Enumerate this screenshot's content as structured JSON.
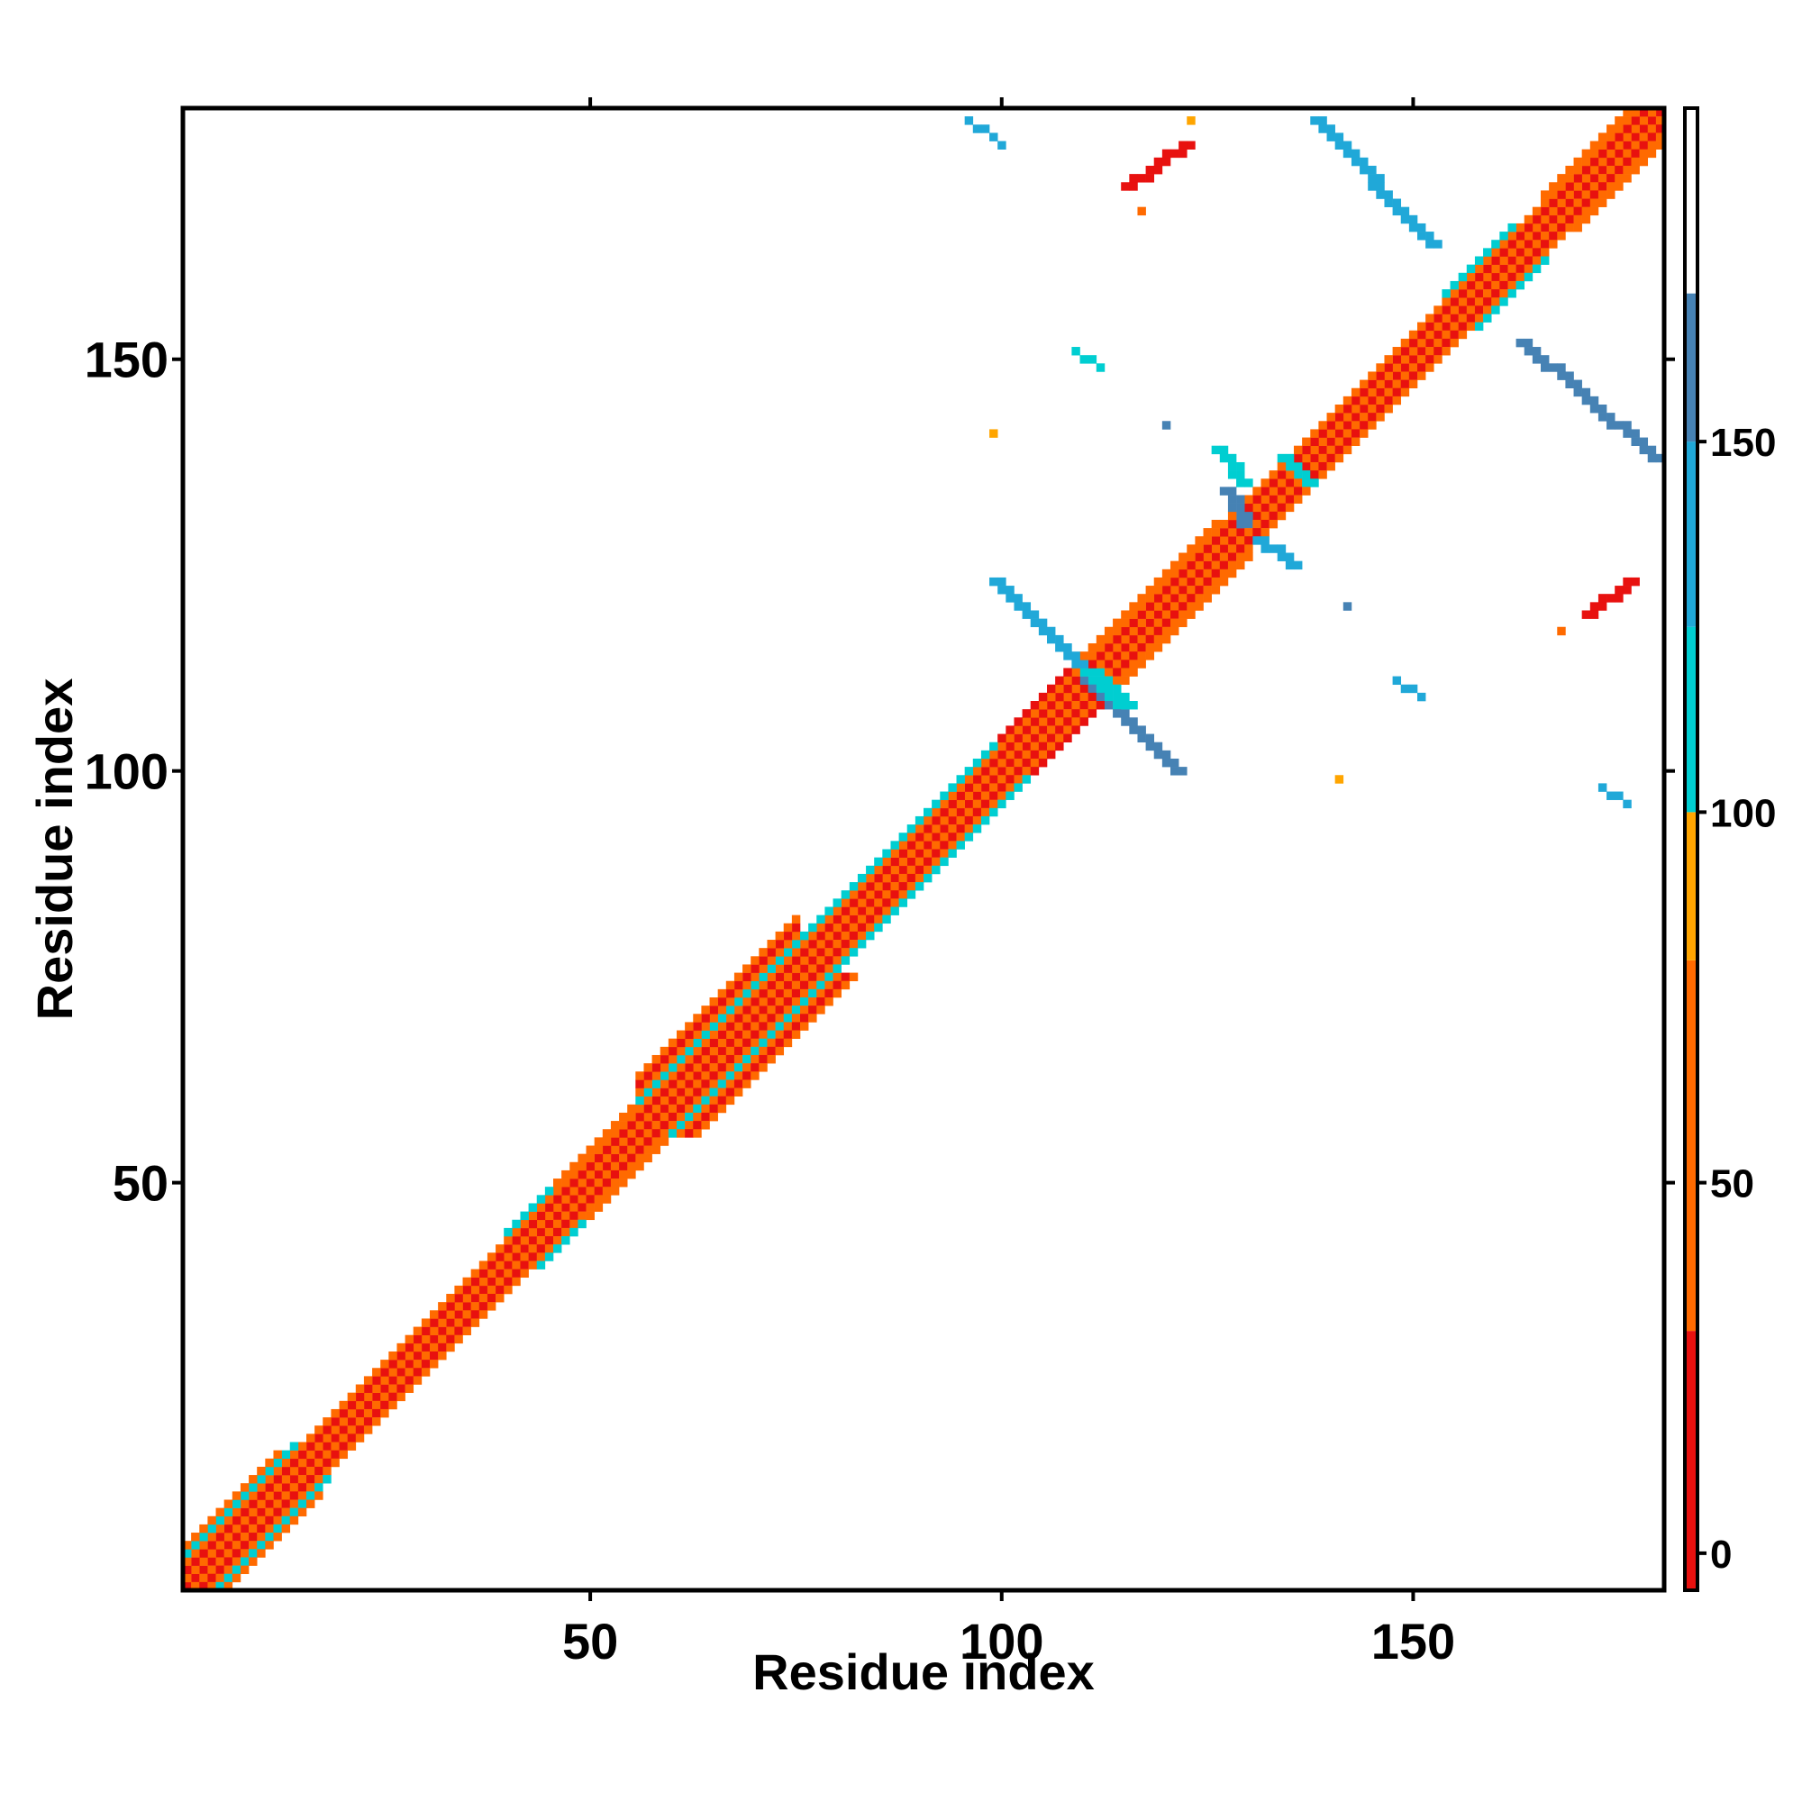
{
  "chart_data": {
    "type": "heatmap",
    "title": "",
    "xlabel": "Residue index",
    "ylabel": "Residue index",
    "xlim": [
      0.5,
      180.5
    ],
    "ylim": [
      0.5,
      180.5
    ],
    "x_ticks": [
      50,
      100,
      150
    ],
    "y_ticks": [
      50,
      100,
      150
    ],
    "grid": false,
    "colorbar": {
      "ticks": [
        0,
        50,
        100,
        150
      ],
      "range": [
        -5,
        195
      ],
      "bands": [
        {
          "from": -5,
          "to": 30,
          "color": "#e8110f"
        },
        {
          "from": 30,
          "to": 80,
          "color": "#ff6a00"
        },
        {
          "from": 80,
          "to": 100,
          "color": "#ffa500"
        },
        {
          "from": 100,
          "to": 125,
          "color": "#00ced1"
        },
        {
          "from": 125,
          "to": 150,
          "color": "#20a8d8"
        },
        {
          "from": 150,
          "to": 170,
          "color": "#4682b4"
        },
        {
          "from": 170,
          "to": 195,
          "color": "#ffffff"
        }
      ]
    },
    "n_residues": 180,
    "diagonal": {
      "from": 1,
      "to": 180,
      "value": 0
    },
    "band_segments": [
      {
        "from": 1,
        "to": 180,
        "offset": 1,
        "value": 40
      },
      {
        "from": 1,
        "to": 180,
        "offset": 2,
        "value": 10
      },
      {
        "from": 1,
        "to": 180,
        "offset": 3,
        "value": 60
      },
      {
        "from": 1,
        "to": 14,
        "offset": 4,
        "value": 110
      },
      {
        "from": 1,
        "to": 12,
        "offset": 5,
        "value": 40
      },
      {
        "from": 40,
        "to": 48,
        "offset": 4,
        "value": 110
      },
      {
        "from": 46,
        "to": 56,
        "offset": 4,
        "value": 40
      },
      {
        "from": 56,
        "to": 75,
        "offset": 4,
        "value": 110
      },
      {
        "from": 56,
        "to": 75,
        "offset": 5,
        "value": 40
      },
      {
        "from": 56,
        "to": 75,
        "offset": 6,
        "value": 10
      },
      {
        "from": 56,
        "to": 75,
        "offset": 7,
        "value": 60
      },
      {
        "from": 75,
        "to": 100,
        "offset": 4,
        "value": 110
      },
      {
        "from": 100,
        "to": 110,
        "offset": 4,
        "value": 10
      },
      {
        "from": 110,
        "to": 126,
        "offset": 4,
        "value": 40
      },
      {
        "from": 154,
        "to": 162,
        "offset": 4,
        "value": 110
      },
      {
        "from": 166,
        "to": 178,
        "offset": 4,
        "value": 40
      }
    ],
    "contact_segments": [
      {
        "from": [
          99,
          123
        ],
        "to": [
          110,
          112
        ],
        "width": 2,
        "value": 145
      },
      {
        "from": [
          110,
          111
        ],
        "to": [
          121,
          100
        ],
        "width": 2,
        "value": 160
      },
      {
        "from": [
          110,
          112
        ],
        "to": [
          114,
          108
        ],
        "width": 3,
        "value": 110
      },
      {
        "from": [
          126,
          139
        ],
        "to": [
          129,
          135
        ],
        "width": 2,
        "value": 110
      },
      {
        "from": [
          127,
          134
        ],
        "to": [
          129,
          130
        ],
        "width": 2,
        "value": 160
      },
      {
        "from": [
          131,
          128
        ],
        "to": [
          135,
          125
        ],
        "width": 2,
        "value": 145
      },
      {
        "from": [
          134,
          138
        ],
        "to": [
          137,
          135
        ],
        "width": 2,
        "value": 110
      },
      {
        "from": [
          138,
          179
        ],
        "to": [
          152,
          164
        ],
        "width": 2,
        "value": 145
      },
      {
        "from": [
          163,
          152
        ],
        "to": [
          179,
          138
        ],
        "width": 2,
        "value": 160
      },
      {
        "from": [
          115,
          171
        ],
        "to": [
          122,
          176
        ],
        "width": 2,
        "value": 25
      },
      {
        "from": [
          171,
          119
        ],
        "to": [
          176,
          123
        ],
        "width": 2,
        "value": 25
      },
      {
        "from": [
          96,
          179
        ],
        "to": [
          99,
          177
        ],
        "width": 1,
        "value": 145
      },
      {
        "from": [
          109,
          151
        ],
        "to": [
          112,
          149
        ],
        "width": 1,
        "value": 110
      },
      {
        "from": [
          148,
          111
        ],
        "to": [
          151,
          109
        ],
        "width": 1,
        "value": 145
      },
      {
        "from": [
          173,
          98
        ],
        "to": [
          176,
          96
        ],
        "width": 1,
        "value": 145
      }
    ],
    "contact_cells": [
      {
        "x": 100,
        "y": 176,
        "value": 145
      },
      {
        "x": 123,
        "y": 179,
        "value": 90
      },
      {
        "x": 99,
        "y": 141,
        "value": 90
      },
      {
        "x": 141,
        "y": 99,
        "value": 90
      },
      {
        "x": 120,
        "y": 142,
        "value": 160
      },
      {
        "x": 142,
        "y": 120,
        "value": 160
      },
      {
        "x": 117,
        "y": 168,
        "value": 40
      },
      {
        "x": 168,
        "y": 117,
        "value": 40
      }
    ]
  }
}
